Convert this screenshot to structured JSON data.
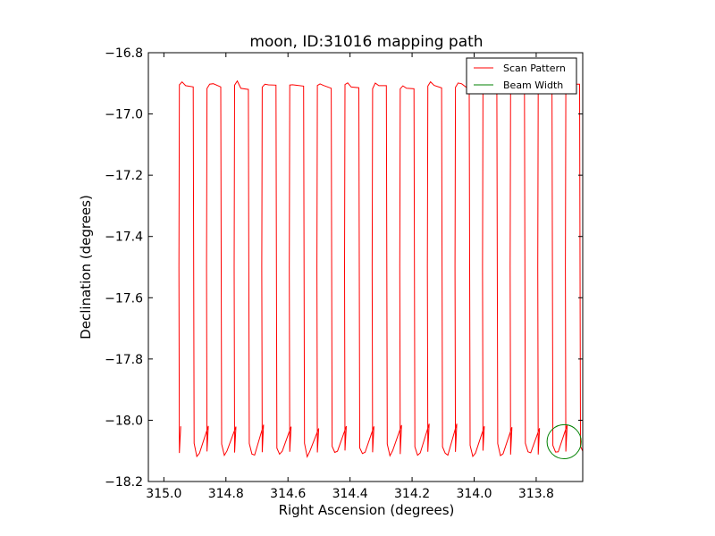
{
  "chart_data": {
    "type": "line",
    "title": "moon, ID:31016 mapping path",
    "xlabel": "Right Ascension (degrees)",
    "ylabel": "Declination (degrees)",
    "xlim": [
      315.05,
      313.65
    ],
    "ylim": [
      -18.2,
      -16.8
    ],
    "xticks": [
      "315.0",
      "314.8",
      "314.6",
      "314.4",
      "314.2",
      "314.0",
      "313.8"
    ],
    "xtick_values": [
      315.0,
      314.8,
      314.6,
      314.4,
      314.2,
      314.0,
      313.8
    ],
    "yticks": [
      "−16.8",
      "−17.0",
      "−17.2",
      "−17.4",
      "−17.6",
      "−17.8",
      "−18.0",
      "−18.2"
    ],
    "ytick_values": [
      -16.8,
      -17.0,
      -17.2,
      -17.4,
      -17.6,
      -17.8,
      -18.0,
      -18.2
    ],
    "grid": false,
    "legend_position": "top-right",
    "series": [
      {
        "name": "Scan Pattern",
        "color": "#ff0000",
        "scan_columns": {
          "ra_start": 314.95,
          "ra_end": 313.66,
          "count": 30,
          "dec_top": -16.9,
          "dec_bottom": -18.1
        }
      },
      {
        "name": "Beam Width",
        "color": "#008000",
        "circle": {
          "ra": 313.71,
          "dec": -18.07,
          "radius_deg": 0.055
        }
      }
    ]
  }
}
